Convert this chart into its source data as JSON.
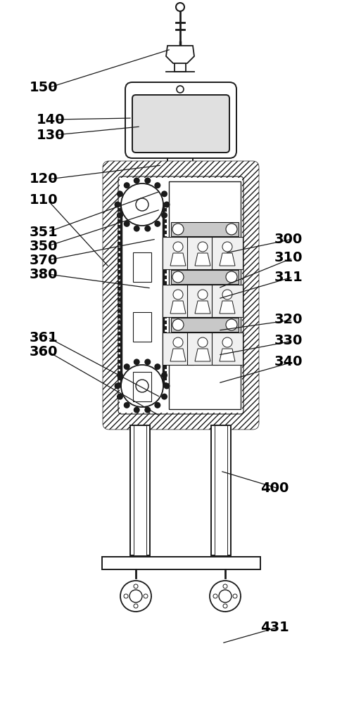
{
  "bg_color": "#ffffff",
  "line_color": "#1a1a1a",
  "fig_width": 5.13,
  "fig_height": 10.0,
  "light_gray": "#e0e0e0",
  "mid_gray": "#c8c8c8"
}
